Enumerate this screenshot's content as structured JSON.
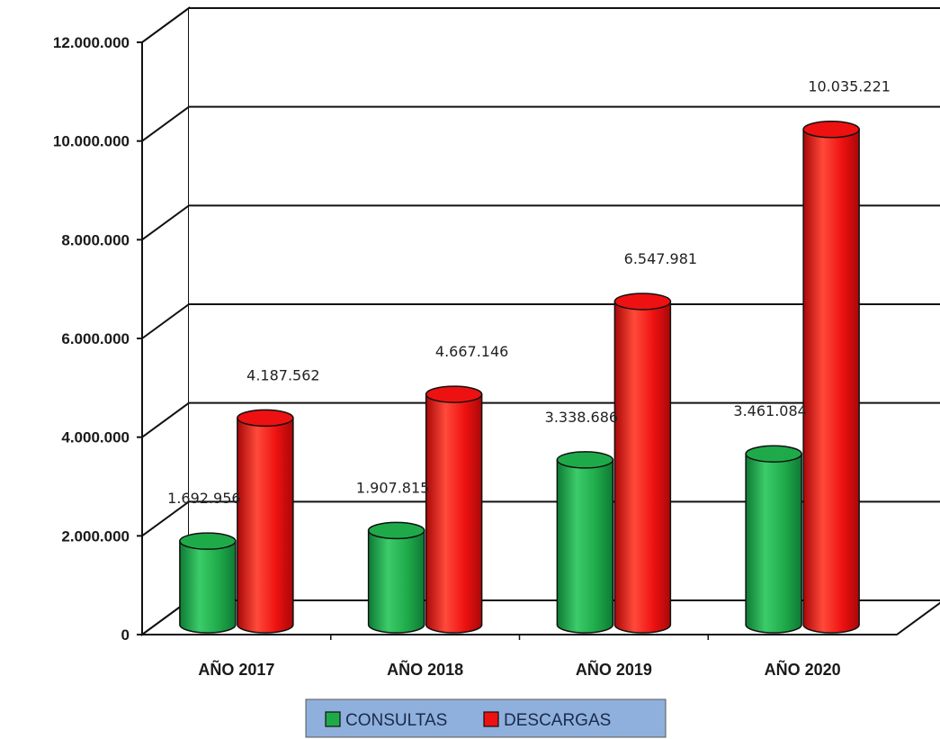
{
  "chart_data": {
    "type": "bar",
    "categories": [
      "AÑO 2017",
      "AÑO 2018",
      "AÑO 2019",
      "AÑO 2020"
    ],
    "series": [
      {
        "name": "CONSULTAS",
        "color": "#1faa4a",
        "values": [
          1692956,
          1907815,
          3338686,
          3461084
        ],
        "labels": [
          "1.692.956",
          "1.907.815",
          "3.338.686",
          "3.461.084"
        ]
      },
      {
        "name": "DESCARGAS",
        "color": "#ee1111",
        "values": [
          4187562,
          4667146,
          6547981,
          10035221
        ],
        "labels": [
          "4.187.562",
          "4.667.146",
          "6.547.981",
          "10.035.221"
        ]
      }
    ],
    "yticks": [
      {
        "value": 0,
        "label": "0"
      },
      {
        "value": 2000000,
        "label": "2.000.000"
      },
      {
        "value": 4000000,
        "label": "4.000.000"
      },
      {
        "value": 6000000,
        "label": "6.000.000"
      },
      {
        "value": 8000000,
        "label": "8.000.000"
      },
      {
        "value": 10000000,
        "label": "10.000.000"
      },
      {
        "value": 12000000,
        "label": "12.000.000"
      }
    ],
    "ylim": [
      0,
      12000000
    ],
    "grid": true,
    "legend_position": "bottom-center",
    "legend_background": "#8fb0dc"
  }
}
